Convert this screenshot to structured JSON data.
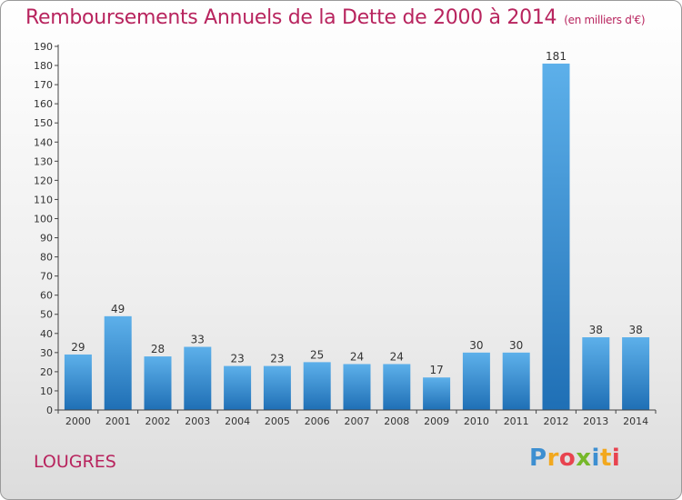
{
  "chart_data": {
    "type": "bar",
    "title": "Remboursements Annuels de la Dette de 2000 à 2014",
    "unit": "(en milliers d'€)",
    "categories": [
      "2000",
      "2001",
      "2002",
      "2003",
      "2004",
      "2005",
      "2006",
      "2007",
      "2008",
      "2009",
      "2010",
      "2011",
      "2012",
      "2013",
      "2014"
    ],
    "values": [
      29,
      49,
      28,
      33,
      23,
      23,
      25,
      24,
      24,
      17,
      30,
      30,
      181,
      38,
      38
    ],
    "yticks": [
      0,
      10,
      20,
      30,
      40,
      50,
      60,
      70,
      80,
      90,
      100,
      110,
      120,
      130,
      140,
      150,
      160,
      170,
      180,
      190
    ],
    "ylim": [
      0,
      190
    ],
    "xlabel": "",
    "ylabel": "",
    "grid": false
  },
  "footer": {
    "commune": "LOUGRES",
    "logo": [
      "P",
      "r",
      "o",
      "x",
      "i",
      "t",
      "i"
    ]
  },
  "colors": {
    "title": "#b8245e",
    "bar_top": "#5db0ea",
    "bar_bottom": "#1f6fb5"
  }
}
